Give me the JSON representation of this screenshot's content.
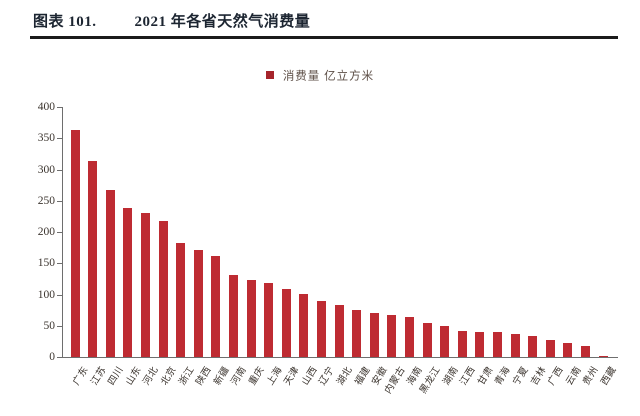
{
  "header": {
    "label": "图表 101.",
    "title": "2021 年各省天然气消费量"
  },
  "legend": {
    "label": "消费量 亿立方米"
  },
  "colors": {
    "bar": "#be2b32",
    "legend_swatch": "#a6242b",
    "title_text": "#1c2531",
    "header_rule": "#1b1b1b",
    "axis_line": "#6e6e6e",
    "tick_text": "#3b342e",
    "legend_text": "#5d4f47"
  },
  "chart_data": {
    "type": "bar",
    "title": "2021 年各省天然气消费量",
    "legend_entries": [
      "消费量 亿立方米"
    ],
    "legend_position": "top-center",
    "grid": false,
    "xlabel": "",
    "ylabel": "",
    "ylim": [
      0,
      400
    ],
    "ytick_step": 50,
    "ytick_labels": [
      "0",
      "50",
      "100",
      "150",
      "200",
      "250",
      "300",
      "350",
      "400"
    ],
    "categories": [
      "广东",
      "江苏",
      "四川",
      "山东",
      "河北",
      "北京",
      "浙江",
      "陕西",
      "新疆",
      "河南",
      "重庆",
      "上海",
      "天津",
      "山西",
      "辽宁",
      "湖北",
      "福建",
      "安徽",
      "内蒙古",
      "海南",
      "黑龙江",
      "湖南",
      "江西",
      "甘肃",
      "青海",
      "宁夏",
      "吉林",
      "广西",
      "云南",
      "贵州",
      "西藏"
    ],
    "values": [
      363,
      314,
      268,
      239,
      230,
      217,
      182,
      171,
      162,
      132,
      123,
      118,
      109,
      101,
      90,
      83,
      76,
      71,
      68,
      64,
      54,
      49,
      41,
      40,
      40,
      37,
      34,
      27,
      22,
      17,
      2
    ]
  }
}
